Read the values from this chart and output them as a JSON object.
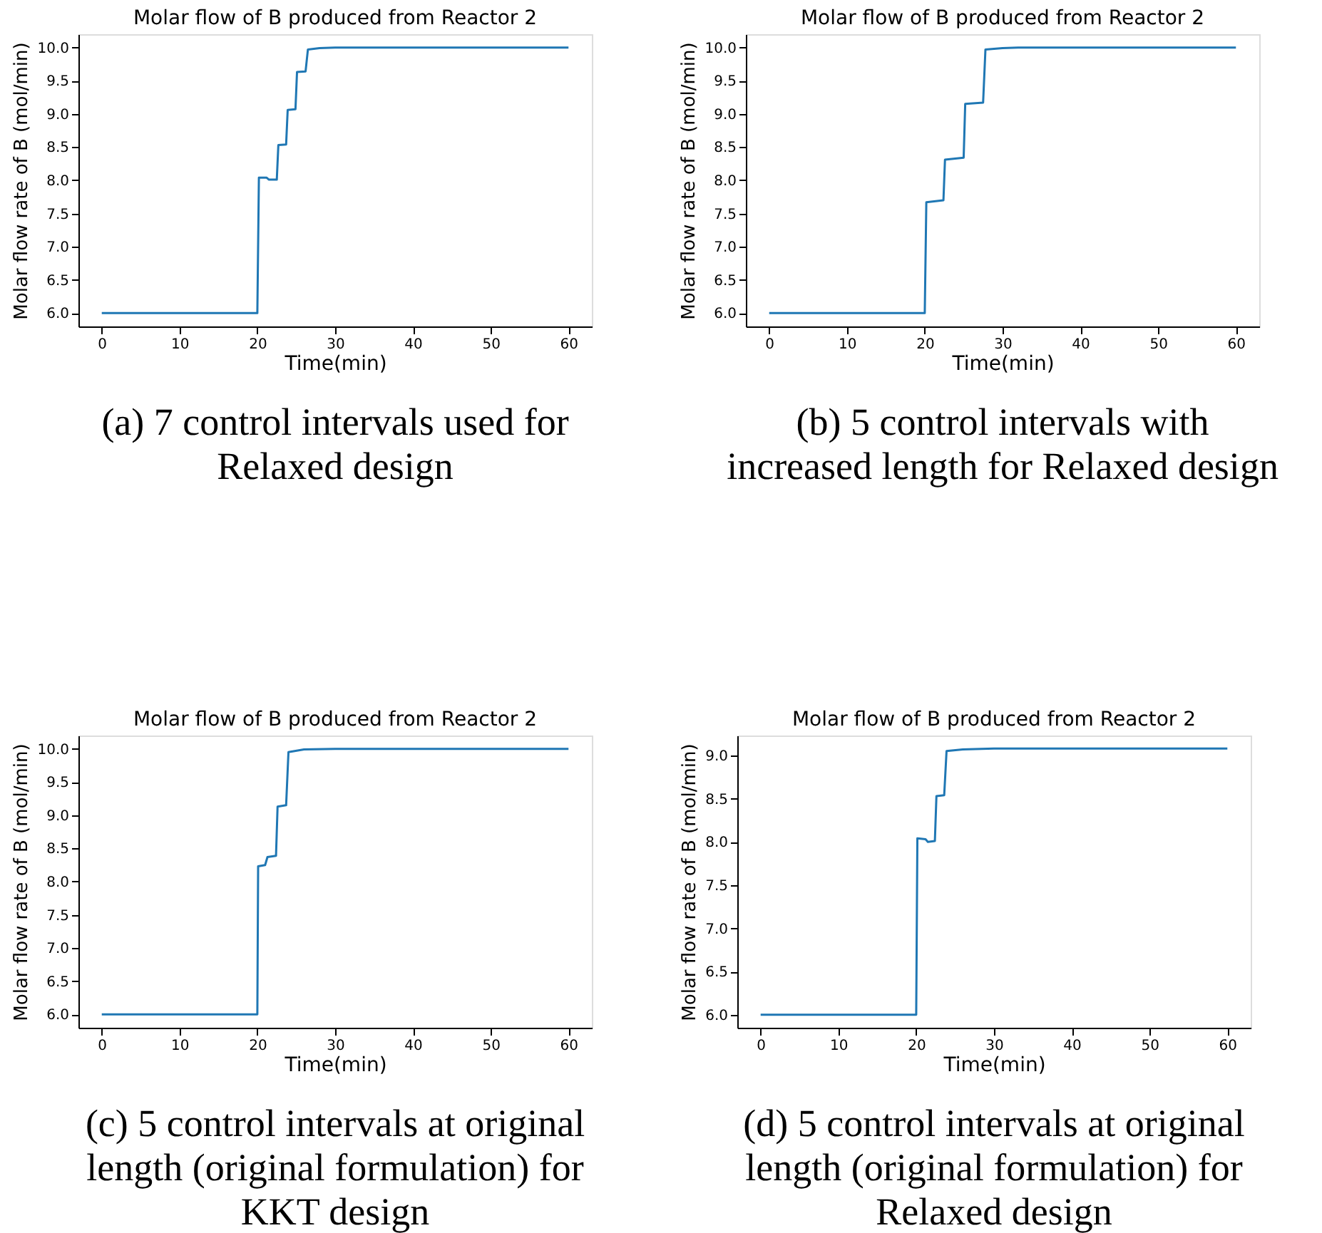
{
  "chart_data": [
    {
      "type": "line",
      "title": "Molar flow of B produced from Reactor 2",
      "xlabel": "Time(min)",
      "ylabel": "Molar flow rate of B (mol/min)",
      "annotations": [
        "(a) 7 control intervals used for Relaxed design"
      ],
      "xlim": [
        -3,
        63
      ],
      "xticks": [
        0,
        10,
        20,
        30,
        40,
        50,
        60
      ],
      "ylim": [
        5.8,
        10.2
      ],
      "yticks": [
        {
          "value": 6,
          "label": "6.0"
        },
        6.5,
        {
          "value": 7,
          "label": "7.0"
        },
        7.5,
        {
          "value": 8,
          "label": "8.0"
        },
        8.5,
        {
          "value": 9,
          "label": "9.0"
        },
        9.5,
        {
          "value": 10,
          "label": "10.0"
        }
      ],
      "grid": false,
      "series": [
        {
          "color": "#1f77b4",
          "x": [
            0,
            20,
            20.2,
            21.2,
            21.5,
            22.5,
            22.7,
            23.7,
            23.9,
            24.9,
            25.1,
            26.2,
            26.5,
            28,
            30,
            60
          ],
          "values": [
            6,
            6,
            8.04,
            8.04,
            8.01,
            8.01,
            8.53,
            8.54,
            9.06,
            9.07,
            9.63,
            9.64,
            9.97,
            9.99,
            10,
            10
          ]
        }
      ]
    },
    {
      "type": "line",
      "title": "Molar flow of B produced from Reactor 2",
      "xlabel": "Time(min)",
      "ylabel": "Molar flow rate of B (mol/min)",
      "annotations": [
        "(b) 5 control intervals with increased length for Relaxed design"
      ],
      "xlim": [
        -3,
        63
      ],
      "xticks": [
        0,
        10,
        20,
        30,
        40,
        50,
        60
      ],
      "ylim": [
        5.8,
        10.2
      ],
      "yticks": [
        {
          "value": 6,
          "label": "6.0"
        },
        6.5,
        {
          "value": 7,
          "label": "7.0"
        },
        7.5,
        {
          "value": 8,
          "label": "8.0"
        },
        8.5,
        {
          "value": 9,
          "label": "9.0"
        },
        9.5,
        {
          "value": 10,
          "label": "10.0"
        }
      ],
      "grid": false,
      "series": [
        {
          "color": "#1f77b4",
          "x": [
            0,
            20,
            20.2,
            22.4,
            22.6,
            25,
            25.2,
            27.5,
            27.8,
            30,
            32,
            60
          ],
          "values": [
            6,
            6,
            7.67,
            7.7,
            8.31,
            8.34,
            9.15,
            9.17,
            9.97,
            9.99,
            10,
            10
          ]
        }
      ]
    },
    {
      "type": "line",
      "title": "Molar flow of B produced from Reactor 2",
      "xlabel": "Time(min)",
      "ylabel": "Molar flow rate of B (mol/min)",
      "annotations": [
        "(c) 5 control intervals at original length (original formulation) for KKT design"
      ],
      "xlim": [
        -3,
        63
      ],
      "xticks": [
        0,
        10,
        20,
        30,
        40,
        50,
        60
      ],
      "ylim": [
        5.8,
        10.2
      ],
      "yticks": [
        {
          "value": 6,
          "label": "6.0"
        },
        6.5,
        {
          "value": 7,
          "label": "7.0"
        },
        7.5,
        {
          "value": 8,
          "label": "8.0"
        },
        8.5,
        {
          "value": 9,
          "label": "9.0"
        },
        9.5,
        {
          "value": 10,
          "label": "10.0"
        }
      ],
      "grid": false,
      "series": [
        {
          "color": "#1f77b4",
          "x": [
            0,
            20,
            20.1,
            21,
            21.3,
            22.4,
            22.6,
            23.7,
            24,
            26,
            30,
            60
          ],
          "values": [
            6,
            6,
            8.23,
            8.25,
            8.37,
            8.39,
            9.13,
            9.15,
            9.95,
            9.99,
            10,
            10
          ]
        }
      ]
    },
    {
      "type": "line",
      "title": "Molar flow of B produced from Reactor 2",
      "xlabel": "Time(min)",
      "ylabel": "Molar flow rate of B (mol/min)",
      "annotations": [
        "(d) 5 control intervals at original length (original formulation) for Relaxed design"
      ],
      "xlim": [
        -3,
        63
      ],
      "xticks": [
        0,
        10,
        20,
        30,
        40,
        50,
        60
      ],
      "ylim": [
        5.85,
        9.23
      ],
      "yticks": [
        {
          "value": 6,
          "label": "6.0"
        },
        6.5,
        {
          "value": 7,
          "label": "7.0"
        },
        7.5,
        {
          "value": 8,
          "label": "8.0"
        },
        8.5,
        {
          "value": 9,
          "label": "9.0"
        }
      ],
      "grid": false,
      "series": [
        {
          "color": "#1f77b4",
          "x": [
            0,
            20,
            20.15,
            21.2,
            21.5,
            22.4,
            22.6,
            23.6,
            23.9,
            26,
            30,
            60
          ],
          "values": [
            6,
            6,
            8.04,
            8.03,
            8.0,
            8.01,
            8.53,
            8.54,
            9.05,
            9.07,
            9.08,
            9.08
          ]
        }
      ]
    }
  ]
}
